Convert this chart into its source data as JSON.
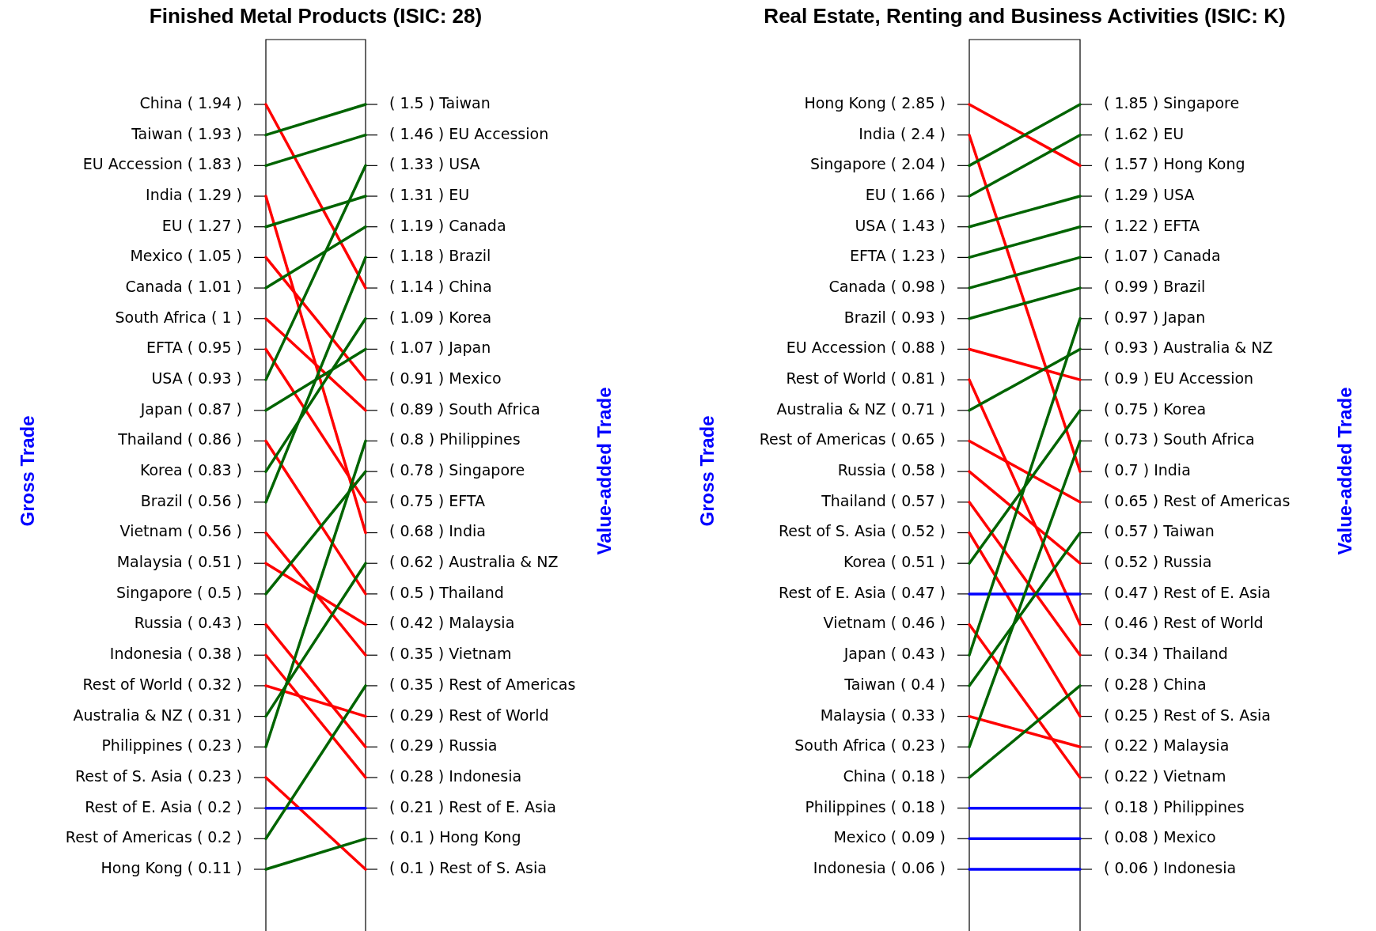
{
  "chart_data": [
    {
      "type": "other",
      "title": "Finished Metal Products (ISIC: 28)",
      "ylabel": "Gross Trade",
      "y2label": "Value-added Trade",
      "categories": [
        "China",
        "Taiwan",
        "EU Accession",
        "India",
        "EU",
        "Mexico",
        "Canada",
        "South Africa",
        "EFTA",
        "USA",
        "Japan",
        "Thailand",
        "Korea",
        "Brazil",
        "Vietnam",
        "Malaysia",
        "Singapore",
        "Russia",
        "Indonesia",
        "Rest of World",
        "Australia & NZ",
        "Philippines",
        "Rest of S. Asia",
        "Rest of E. Asia",
        "Rest of Americas",
        "Hong Kong"
      ],
      "values": [
        1.94,
        1.93,
        1.83,
        1.29,
        1.27,
        1.05,
        1.01,
        1,
        0.95,
        0.93,
        0.87,
        0.86,
        0.83,
        0.56,
        0.56,
        0.51,
        0.5,
        0.43,
        0.38,
        0.32,
        0.31,
        0.23,
        0.23,
        0.2,
        0.2,
        0.11
      ],
      "value_labels": [
        "( 1.94 )",
        "( 1.93 )",
        "( 1.83 )",
        "( 1.29 )",
        "( 1.27 )",
        "( 1.05 )",
        "( 1.01 )",
        "( 1 )",
        "( 0.95 )",
        "( 0.93 )",
        "( 0.87 )",
        "( 0.86 )",
        "( 0.83 )",
        "( 0.56 )",
        "( 0.56 )",
        "( 0.51 )",
        "( 0.5 )",
        "( 0.43 )",
        "( 0.38 )",
        "( 0.32 )",
        "( 0.31 )",
        "( 0.23 )",
        "( 0.23 )",
        "( 0.2 )",
        "( 0.2 )",
        "( 0.11 )"
      ],
      "colors": [
        "#ff0000",
        "#006400",
        "#006400",
        "#ff0000",
        "#006400",
        "#ff0000",
        "#006400",
        "#ff0000",
        "#ff0000",
        "#006400",
        "#006400",
        "#ff0000",
        "#006400",
        "#006400",
        "#ff0000",
        "#ff0000",
        "#006400",
        "#ff0000",
        "#ff0000",
        "#ff0000",
        "#006400",
        "#006400",
        "#ff0000",
        "#0000ff",
        "#006400",
        "#006400"
      ],
      "y2_categories": [
        "Taiwan",
        "EU Accession",
        "USA",
        "EU",
        "Canada",
        "Brazil",
        "China",
        "Korea",
        "Japan",
        "Mexico",
        "South Africa",
        "Philippines",
        "Singapore",
        "EFTA",
        "India",
        "Australia & NZ",
        "Thailand",
        "Malaysia",
        "Vietnam",
        "Rest of Americas",
        "Rest of World",
        "Russia",
        "Indonesia",
        "Rest of E. Asia",
        "Hong Kong",
        "Rest of S. Asia"
      ],
      "series": [
        {
          "values": [
            1.5,
            1.46,
            1.33,
            1.31,
            1.19,
            1.18,
            1.14,
            1.09,
            1.07,
            0.91,
            0.89,
            0.8,
            0.78,
            0.75,
            0.68,
            0.62,
            0.5,
            0.42,
            0.35,
            0.35,
            0.29,
            0.29,
            0.28,
            0.21,
            0.1,
            0.1
          ],
          "value_labels": [
            "( 1.5 )",
            "( 1.46 )",
            "( 1.33 )",
            "( 1.31 )",
            "( 1.19 )",
            "( 1.18 )",
            "( 1.14 )",
            "( 1.09 )",
            "( 1.07 )",
            "( 0.91 )",
            "( 0.89 )",
            "( 0.8 )",
            "( 0.78 )",
            "( 0.75 )",
            "( 0.68 )",
            "( 0.62 )",
            "( 0.5 )",
            "( 0.42 )",
            "( 0.35 )",
            "( 0.35 )",
            "( 0.29 )",
            "( 0.29 )",
            "( 0.28 )",
            "( 0.21 )",
            "( 0.1 )",
            "( 0.1 )"
          ]
        }
      ]
    },
    {
      "type": "other",
      "title": "Real Estate, Renting and Business Activities (ISIC: K)",
      "ylabel": "Gross Trade",
      "y2label": "Value-added Trade",
      "categories": [
        "Hong Kong",
        "India",
        "Singapore",
        "EU",
        "USA",
        "EFTA",
        "Canada",
        "Brazil",
        "EU Accession",
        "Rest of World",
        "Australia & NZ",
        "Rest of Americas",
        "Russia",
        "Thailand",
        "Rest of S. Asia",
        "Korea",
        "Rest of E. Asia",
        "Vietnam",
        "Japan",
        "Taiwan",
        "Malaysia",
        "South Africa",
        "China",
        "Philippines",
        "Mexico",
        "Indonesia"
      ],
      "values": [
        2.85,
        2.4,
        2.04,
        1.66,
        1.43,
        1.23,
        0.98,
        0.93,
        0.88,
        0.81,
        0.71,
        0.65,
        0.58,
        0.57,
        0.52,
        0.51,
        0.47,
        0.46,
        0.43,
        0.4,
        0.33,
        0.23,
        0.18,
        0.18,
        0.09,
        0.06
      ],
      "value_labels": [
        "( 2.85 )",
        "( 2.4 )",
        "( 2.04 )",
        "( 1.66 )",
        "( 1.43 )",
        "( 1.23 )",
        "( 0.98 )",
        "( 0.93 )",
        "( 0.88 )",
        "( 0.81 )",
        "( 0.71 )",
        "( 0.65 )",
        "( 0.58 )",
        "( 0.57 )",
        "( 0.52 )",
        "( 0.51 )",
        "( 0.47 )",
        "( 0.46 )",
        "( 0.43 )",
        "( 0.4 )",
        "( 0.33 )",
        "( 0.23 )",
        "( 0.18 )",
        "( 0.18 )",
        "( 0.09 )",
        "( 0.06 )"
      ],
      "colors": [
        "#ff0000",
        "#ff0000",
        "#006400",
        "#006400",
        "#006400",
        "#006400",
        "#006400",
        "#006400",
        "#ff0000",
        "#ff0000",
        "#006400",
        "#ff0000",
        "#ff0000",
        "#ff0000",
        "#ff0000",
        "#006400",
        "#0000ff",
        "#ff0000",
        "#006400",
        "#006400",
        "#ff0000",
        "#006400",
        "#006400",
        "#0000ff",
        "#0000ff",
        "#0000ff"
      ],
      "y2_categories": [
        "Singapore",
        "EU",
        "Hong Kong",
        "USA",
        "EFTA",
        "Canada",
        "Brazil",
        "Japan",
        "Australia & NZ",
        "EU Accession",
        "Korea",
        "South Africa",
        "India",
        "Rest of Americas",
        "Taiwan",
        "Russia",
        "Rest of E. Asia",
        "Rest of World",
        "Thailand",
        "China",
        "Rest of S. Asia",
        "Malaysia",
        "Vietnam",
        "Philippines",
        "Mexico",
        "Indonesia"
      ],
      "series": [
        {
          "values": [
            1.85,
            1.62,
            1.57,
            1.29,
            1.22,
            1.07,
            0.99,
            0.97,
            0.93,
            0.9,
            0.75,
            0.73,
            0.7,
            0.65,
            0.57,
            0.52,
            0.47,
            0.46,
            0.34,
            0.28,
            0.25,
            0.22,
            0.22,
            0.18,
            0.08,
            0.06
          ],
          "value_labels": [
            "( 1.85 )",
            "( 1.62 )",
            "( 1.57 )",
            "( 1.29 )",
            "( 1.22 )",
            "( 1.07 )",
            "( 0.99 )",
            "( 0.97 )",
            "( 0.93 )",
            "( 0.9 )",
            "( 0.75 )",
            "( 0.73 )",
            "( 0.7 )",
            "( 0.65 )",
            "( 0.57 )",
            "( 0.52 )",
            "( 0.47 )",
            "( 0.46 )",
            "( 0.34 )",
            "( 0.28 )",
            "( 0.25 )",
            "( 0.22 )",
            "( 0.22 )",
            "( 0.18 )",
            "( 0.08 )",
            "( 0.06 )"
          ]
        }
      ]
    }
  ]
}
